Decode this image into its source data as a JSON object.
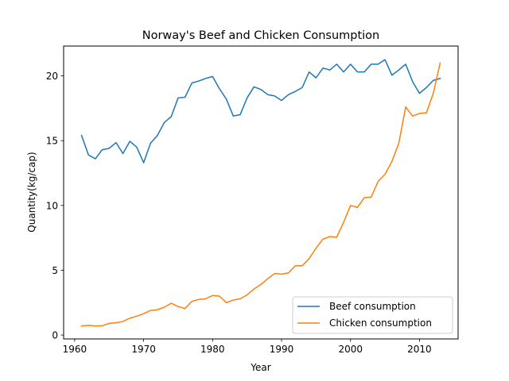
{
  "chart_data": {
    "type": "line",
    "title": "Norway's Beef and Chicken Consumption",
    "xlabel": "Year",
    "ylabel": "Quantity(kg/cap)",
    "xlim": [
      1958.4,
      2015.6
    ],
    "ylim": [
      -0.3,
      22.3
    ],
    "xticks": [
      1960,
      1970,
      1980,
      1990,
      2000,
      2010
    ],
    "yticks": [
      0,
      5,
      10,
      15,
      20
    ],
    "grid": false,
    "legend_position": "lower-right",
    "x": [
      1961,
      1962,
      1963,
      1964,
      1965,
      1966,
      1967,
      1968,
      1969,
      1970,
      1971,
      1972,
      1973,
      1974,
      1975,
      1976,
      1977,
      1978,
      1979,
      1980,
      1981,
      1982,
      1983,
      1984,
      1985,
      1986,
      1987,
      1988,
      1989,
      1990,
      1991,
      1992,
      1993,
      1994,
      1995,
      1996,
      1997,
      1998,
      1999,
      2000,
      2001,
      2002,
      2003,
      2004,
      2005,
      2006,
      2007,
      2008,
      2009,
      2010,
      2011,
      2012,
      2013
    ],
    "series": [
      {
        "name": "Beef consumption",
        "color": "#1f77b4",
        "values": [
          15.4,
          13.9,
          13.6,
          14.3,
          14.4,
          14.85,
          14.0,
          14.95,
          14.5,
          13.3,
          14.8,
          15.4,
          16.4,
          16.85,
          18.3,
          18.35,
          19.45,
          19.6,
          19.8,
          19.95,
          19.0,
          18.2,
          16.9,
          17.0,
          18.3,
          19.15,
          18.95,
          18.55,
          18.45,
          18.1,
          18.55,
          18.8,
          19.1,
          20.3,
          19.85,
          20.6,
          20.45,
          20.9,
          20.3,
          20.9,
          20.3,
          20.3,
          20.9,
          20.9,
          21.25,
          20.05,
          20.45,
          20.9,
          19.55,
          18.65,
          19.1,
          19.65,
          19.8
        ]
      },
      {
        "name": "Chicken consumption",
        "color": "#ff7f0e",
        "values": [
          0.7,
          0.75,
          0.7,
          0.72,
          0.9,
          0.95,
          1.05,
          1.3,
          1.45,
          1.65,
          1.9,
          1.95,
          2.15,
          2.45,
          2.2,
          2.05,
          2.6,
          2.75,
          2.8,
          3.05,
          3.0,
          2.5,
          2.7,
          2.8,
          3.1,
          3.55,
          3.9,
          4.35,
          4.75,
          4.7,
          4.8,
          5.35,
          5.35,
          5.9,
          6.7,
          7.4,
          7.6,
          7.55,
          8.7,
          10.0,
          9.85,
          10.6,
          10.65,
          11.85,
          12.4,
          13.4,
          14.8,
          17.6,
          16.9,
          17.1,
          17.15,
          18.65,
          21.0
        ]
      }
    ]
  }
}
